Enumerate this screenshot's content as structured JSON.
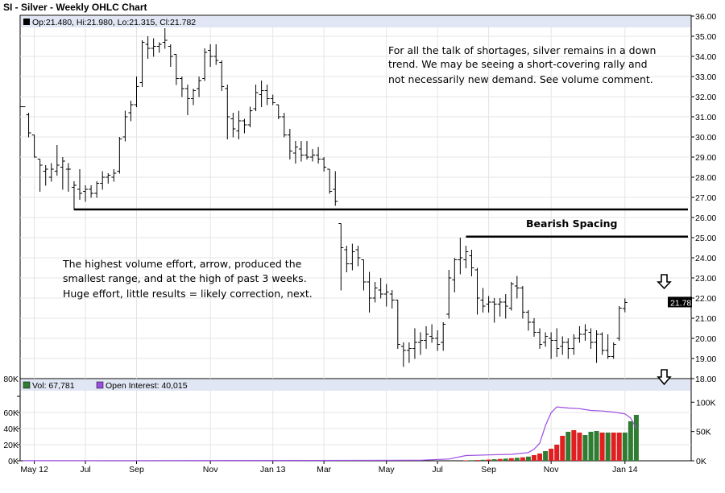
{
  "header": {
    "title": "SI - Silver - Weekly OHLC Chart",
    "ohlc_readout": "Op:21.480, Hi:21.980, Lo:21.315, Cl:21.782",
    "last_price_tag": "21.782"
  },
  "annotations": {
    "top_note": [
      "For all the talk of shortages, silver remains in a down",
      "trend.  We may be seeing a short-covering rally and",
      "not necessarily new demand.  See volume comment."
    ],
    "left_note": [
      "The highest volume effort, arrow, produced the",
      "smallest range, and at the high of past 3 weeks.",
      "Huge effort, little results = likely correction, next."
    ],
    "spacing_label": "Bearish Spacing"
  },
  "chart_data": [
    {
      "type": "ohlc",
      "title": "SI - Silver - Weekly OHLC Chart",
      "ylim": [
        18,
        36
      ],
      "y_ticks": [
        "18.00",
        "19.00",
        "20.00",
        "21.00",
        "22.00",
        "23.00",
        "24.00",
        "25.00",
        "26.00",
        "27.00",
        "28.00",
        "29.00",
        "30.00",
        "31.00",
        "32.00",
        "33.00",
        "34.00",
        "35.00",
        "36.00"
      ],
      "x_tick_labels": [
        "May 12",
        "Jul",
        "Sep",
        "Nov",
        "Jan 13",
        "Mar",
        "May",
        "Jul",
        "Sep",
        "Nov",
        "Jan 14"
      ],
      "bars": [
        {
          "o": 31.5,
          "h": 31.5,
          "l": 31.5,
          "c": 31.5
        },
        {
          "o": 31.1,
          "h": 31.2,
          "l": 30.0,
          "c": 30.2
        },
        {
          "o": 30.1,
          "h": 30.1,
          "l": 29.0,
          "c": 29.0
        },
        {
          "o": 28.9,
          "h": 28.9,
          "l": 27.3,
          "c": 28.6
        },
        {
          "o": 28.3,
          "h": 28.6,
          "l": 27.6,
          "c": 28.4
        },
        {
          "o": 28.0,
          "h": 28.7,
          "l": 27.8,
          "c": 28.4
        },
        {
          "o": 28.3,
          "h": 29.6,
          "l": 28.1,
          "c": 28.6
        },
        {
          "o": 28.5,
          "h": 29.0,
          "l": 27.4,
          "c": 28.8
        },
        {
          "o": 28.4,
          "h": 28.7,
          "l": 27.3,
          "c": 28.4
        },
        {
          "o": 27.5,
          "h": 27.8,
          "l": 26.4,
          "c": 27.6
        },
        {
          "o": 27.4,
          "h": 28.4,
          "l": 26.9,
          "c": 27.2
        },
        {
          "o": 27.3,
          "h": 27.6,
          "l": 26.8,
          "c": 27.4
        },
        {
          "o": 27.4,
          "h": 27.6,
          "l": 27.0,
          "c": 27.2
        },
        {
          "o": 27.2,
          "h": 27.8,
          "l": 27.0,
          "c": 27.7
        },
        {
          "o": 27.7,
          "h": 28.3,
          "l": 27.4,
          "c": 28.0
        },
        {
          "o": 28.0,
          "h": 28.2,
          "l": 27.7,
          "c": 28.1
        },
        {
          "o": 28.0,
          "h": 28.4,
          "l": 27.8,
          "c": 28.2
        },
        {
          "o": 28.3,
          "h": 30.0,
          "l": 28.2,
          "c": 29.9
        },
        {
          "o": 30.0,
          "h": 31.3,
          "l": 29.8,
          "c": 31.0
        },
        {
          "o": 31.2,
          "h": 31.8,
          "l": 30.8,
          "c": 31.6
        },
        {
          "o": 31.6,
          "h": 33.0,
          "l": 31.5,
          "c": 32.5
        },
        {
          "o": 32.7,
          "h": 34.8,
          "l": 32.5,
          "c": 34.7
        },
        {
          "o": 34.6,
          "h": 35.0,
          "l": 33.9,
          "c": 34.4
        },
        {
          "o": 34.4,
          "h": 34.9,
          "l": 34.0,
          "c": 34.5
        },
        {
          "o": 34.5,
          "h": 34.7,
          "l": 34.2,
          "c": 34.6
        },
        {
          "o": 34.7,
          "h": 35.4,
          "l": 34.4,
          "c": 34.8
        },
        {
          "o": 34.5,
          "h": 34.6,
          "l": 33.5,
          "c": 34.0
        },
        {
          "o": 34.1,
          "h": 34.1,
          "l": 32.6,
          "c": 32.9
        },
        {
          "o": 32.9,
          "h": 33.0,
          "l": 32.0,
          "c": 32.4
        },
        {
          "o": 32.4,
          "h": 32.6,
          "l": 31.1,
          "c": 31.9
        },
        {
          "o": 31.9,
          "h": 32.4,
          "l": 31.6,
          "c": 32.3
        },
        {
          "o": 32.4,
          "h": 33.0,
          "l": 32.0,
          "c": 32.8
        },
        {
          "o": 32.9,
          "h": 34.4,
          "l": 32.8,
          "c": 34.2
        },
        {
          "o": 34.3,
          "h": 34.6,
          "l": 33.5,
          "c": 34.0
        },
        {
          "o": 34.0,
          "h": 34.6,
          "l": 33.6,
          "c": 33.8
        },
        {
          "o": 33.7,
          "h": 33.8,
          "l": 32.3,
          "c": 32.5
        },
        {
          "o": 32.4,
          "h": 32.6,
          "l": 29.9,
          "c": 31.0
        },
        {
          "o": 30.9,
          "h": 31.2,
          "l": 30.0,
          "c": 30.4
        },
        {
          "o": 30.3,
          "h": 31.3,
          "l": 29.9,
          "c": 30.8
        },
        {
          "o": 30.8,
          "h": 30.9,
          "l": 30.2,
          "c": 30.6
        },
        {
          "o": 30.6,
          "h": 31.5,
          "l": 30.5,
          "c": 31.3
        },
        {
          "o": 31.4,
          "h": 32.6,
          "l": 31.3,
          "c": 32.2
        },
        {
          "o": 32.1,
          "h": 32.8,
          "l": 31.5,
          "c": 32.3
        },
        {
          "o": 32.3,
          "h": 32.6,
          "l": 31.6,
          "c": 31.9
        },
        {
          "o": 31.9,
          "h": 32.1,
          "l": 31.6,
          "c": 31.7
        },
        {
          "o": 31.6,
          "h": 31.6,
          "l": 30.9,
          "c": 31.0
        },
        {
          "o": 31.0,
          "h": 31.2,
          "l": 30.0,
          "c": 30.1
        },
        {
          "o": 30.1,
          "h": 30.4,
          "l": 28.9,
          "c": 29.3
        },
        {
          "o": 29.2,
          "h": 29.8,
          "l": 28.7,
          "c": 29.5
        },
        {
          "o": 29.4,
          "h": 29.8,
          "l": 28.8,
          "c": 29.1
        },
        {
          "o": 29.1,
          "h": 29.8,
          "l": 28.9,
          "c": 29.0
        },
        {
          "o": 29.0,
          "h": 29.4,
          "l": 28.8,
          "c": 29.1
        },
        {
          "o": 29.1,
          "h": 29.5,
          "l": 28.7,
          "c": 28.9
        },
        {
          "o": 28.9,
          "h": 29.0,
          "l": 28.3,
          "c": 28.5
        },
        {
          "o": 28.4,
          "h": 28.4,
          "l": 27.2,
          "c": 27.3
        },
        {
          "o": 27.4,
          "h": 28.3,
          "l": 26.6,
          "c": 26.8
        },
        {
          "o": 25.7,
          "h": 25.7,
          "l": 22.4,
          "c": 24.5
        },
        {
          "o": 24.4,
          "h": 24.6,
          "l": 23.3,
          "c": 23.7
        },
        {
          "o": 23.7,
          "h": 24.7,
          "l": 23.4,
          "c": 24.3
        },
        {
          "o": 24.4,
          "h": 24.6,
          "l": 23.6,
          "c": 24.0
        },
        {
          "o": 23.9,
          "h": 23.9,
          "l": 22.4,
          "c": 22.8
        },
        {
          "o": 22.8,
          "h": 23.3,
          "l": 21.3,
          "c": 22.0
        },
        {
          "o": 22.0,
          "h": 22.8,
          "l": 21.8,
          "c": 22.5
        },
        {
          "o": 22.4,
          "h": 23.0,
          "l": 22.0,
          "c": 22.2
        },
        {
          "o": 22.2,
          "h": 22.7,
          "l": 21.6,
          "c": 22.3
        },
        {
          "o": 22.2,
          "h": 22.4,
          "l": 21.5,
          "c": 21.9
        },
        {
          "o": 21.9,
          "h": 21.9,
          "l": 19.5,
          "c": 19.7
        },
        {
          "o": 19.6,
          "h": 19.8,
          "l": 18.6,
          "c": 19.4
        },
        {
          "o": 19.4,
          "h": 19.8,
          "l": 18.8,
          "c": 19.5
        },
        {
          "o": 19.5,
          "h": 20.5,
          "l": 19.0,
          "c": 19.8
        },
        {
          "o": 19.8,
          "h": 20.3,
          "l": 19.2,
          "c": 19.9
        },
        {
          "o": 19.9,
          "h": 20.6,
          "l": 19.5,
          "c": 20.2
        },
        {
          "o": 20.1,
          "h": 20.7,
          "l": 19.8,
          "c": 20.0
        },
        {
          "o": 20.0,
          "h": 20.4,
          "l": 19.4,
          "c": 19.7
        },
        {
          "o": 19.8,
          "h": 20.8,
          "l": 19.4,
          "c": 20.7
        },
        {
          "o": 21.2,
          "h": 23.4,
          "l": 21.0,
          "c": 23.0
        },
        {
          "o": 22.9,
          "h": 24.0,
          "l": 22.3,
          "c": 23.9
        },
        {
          "o": 23.9,
          "h": 25.0,
          "l": 23.2,
          "c": 24.0
        },
        {
          "o": 23.9,
          "h": 24.6,
          "l": 23.5,
          "c": 24.3
        },
        {
          "o": 24.1,
          "h": 24.4,
          "l": 23.1,
          "c": 23.5
        },
        {
          "o": 23.4,
          "h": 23.5,
          "l": 21.2,
          "c": 22.0
        },
        {
          "o": 21.9,
          "h": 22.5,
          "l": 21.3,
          "c": 21.6
        },
        {
          "o": 21.7,
          "h": 22.1,
          "l": 21.3,
          "c": 21.8
        },
        {
          "o": 21.8,
          "h": 22.0,
          "l": 20.8,
          "c": 21.7
        },
        {
          "o": 21.7,
          "h": 22.0,
          "l": 21.1,
          "c": 21.8
        },
        {
          "o": 21.8,
          "h": 22.2,
          "l": 21.0,
          "c": 21.6
        },
        {
          "o": 21.5,
          "h": 22.8,
          "l": 21.4,
          "c": 22.7
        },
        {
          "o": 22.6,
          "h": 23.1,
          "l": 22.0,
          "c": 22.5
        },
        {
          "o": 22.5,
          "h": 22.6,
          "l": 21.0,
          "c": 21.3
        },
        {
          "o": 21.3,
          "h": 21.4,
          "l": 20.4,
          "c": 20.8
        },
        {
          "o": 20.8,
          "h": 21.0,
          "l": 20.1,
          "c": 20.3
        },
        {
          "o": 20.3,
          "h": 20.5,
          "l": 19.5,
          "c": 19.7
        },
        {
          "o": 19.8,
          "h": 20.3,
          "l": 19.6,
          "c": 20.1
        },
        {
          "o": 20.0,
          "h": 20.3,
          "l": 19.0,
          "c": 19.9
        },
        {
          "o": 19.9,
          "h": 20.5,
          "l": 19.1,
          "c": 19.5
        },
        {
          "o": 19.6,
          "h": 20.1,
          "l": 19.2,
          "c": 19.8
        },
        {
          "o": 19.8,
          "h": 20.0,
          "l": 19.0,
          "c": 19.5
        },
        {
          "o": 19.5,
          "h": 20.2,
          "l": 19.2,
          "c": 20.0
        },
        {
          "o": 20.0,
          "h": 20.6,
          "l": 19.8,
          "c": 20.2
        },
        {
          "o": 20.2,
          "h": 20.7,
          "l": 19.9,
          "c": 20.4
        },
        {
          "o": 20.3,
          "h": 20.5,
          "l": 19.5,
          "c": 19.8
        },
        {
          "o": 19.8,
          "h": 20.4,
          "l": 18.8,
          "c": 20.2
        },
        {
          "o": 20.2,
          "h": 20.3,
          "l": 19.2,
          "c": 19.4
        },
        {
          "o": 19.4,
          "h": 20.2,
          "l": 19.0,
          "c": 19.1
        },
        {
          "o": 19.1,
          "h": 19.8,
          "l": 19.0,
          "c": 19.7
        },
        {
          "o": 20.0,
          "h": 21.6,
          "l": 19.9,
          "c": 21.5
        },
        {
          "o": 21.48,
          "h": 21.98,
          "l": 21.315,
          "c": 21.782
        }
      ],
      "horizontal_lines": [
        {
          "y": 26.4,
          "from_bar": 9,
          "to_bar": 115
        },
        {
          "y": 25.05,
          "from_bar": 78,
          "to_bar": 115
        }
      ]
    },
    {
      "type": "bar",
      "title": "Vol / Open Interest",
      "left_ylim": [
        0,
        80000
      ],
      "left_y_ticks": [
        "0K",
        "20K",
        "40K",
        "60K",
        "80K"
      ],
      "right_ylim": [
        0,
        110000
      ],
      "right_y_ticks": [
        "0K",
        "50K",
        "100K"
      ],
      "volume_label": "Vol: 67,781",
      "open_interest_label": "Open Interest: 40,015",
      "volume_bars": [
        {
          "bar": 78,
          "v": 500,
          "c": "r"
        },
        {
          "bar": 79,
          "v": 700,
          "c": "g"
        },
        {
          "bar": 80,
          "v": 900,
          "c": "r"
        },
        {
          "bar": 81,
          "v": 1200,
          "c": "g"
        },
        {
          "bar": 82,
          "v": 1500,
          "c": "r"
        },
        {
          "bar": 83,
          "v": 1900,
          "c": "g"
        },
        {
          "bar": 84,
          "v": 2300,
          "c": "r"
        },
        {
          "bar": 85,
          "v": 2700,
          "c": "g"
        },
        {
          "bar": 86,
          "v": 3200,
          "c": "r"
        },
        {
          "bar": 87,
          "v": 3700,
          "c": "g"
        },
        {
          "bar": 88,
          "v": 4300,
          "c": "r"
        },
        {
          "bar": 89,
          "v": 5200,
          "c": "g"
        },
        {
          "bar": 90,
          "v": 7000,
          "c": "r"
        },
        {
          "bar": 91,
          "v": 9000,
          "c": "r"
        },
        {
          "bar": 92,
          "v": 12000,
          "c": "g"
        },
        {
          "bar": 93,
          "v": 15000,
          "c": "r"
        },
        {
          "bar": 94,
          "v": 20000,
          "c": "r"
        },
        {
          "bar": 95,
          "v": 31000,
          "c": "r"
        },
        {
          "bar": 96,
          "v": 36000,
          "c": "g"
        },
        {
          "bar": 97,
          "v": 38000,
          "c": "r"
        },
        {
          "bar": 98,
          "v": 35000,
          "c": "r"
        },
        {
          "bar": 99,
          "v": 32000,
          "c": "g"
        },
        {
          "bar": 100,
          "v": 36000,
          "c": "g"
        },
        {
          "bar": 101,
          "v": 37000,
          "c": "g"
        },
        {
          "bar": 102,
          "v": 35000,
          "c": "r"
        },
        {
          "bar": 103,
          "v": 35000,
          "c": "g"
        },
        {
          "bar": 104,
          "v": 35000,
          "c": "r"
        },
        {
          "bar": 105,
          "v": 35000,
          "c": "r"
        },
        {
          "bar": 106,
          "v": 35000,
          "c": "g"
        },
        {
          "bar": 107,
          "v": 49000,
          "c": "g"
        },
        {
          "bar": 108,
          "v": 57000,
          "c": "g"
        }
      ],
      "open_interest_line": [
        {
          "bar": 0,
          "v": 100
        },
        {
          "bar": 20,
          "v": 300
        },
        {
          "bar": 50,
          "v": 600
        },
        {
          "bar": 70,
          "v": 1000
        },
        {
          "bar": 75,
          "v": 3000
        },
        {
          "bar": 78,
          "v": 9000
        },
        {
          "bar": 82,
          "v": 10000
        },
        {
          "bar": 86,
          "v": 11000
        },
        {
          "bar": 89,
          "v": 14000
        },
        {
          "bar": 90,
          "v": 20000
        },
        {
          "bar": 91,
          "v": 30000
        },
        {
          "bar": 92,
          "v": 60000
        },
        {
          "bar": 93,
          "v": 82000
        },
        {
          "bar": 94,
          "v": 92000
        },
        {
          "bar": 96,
          "v": 90000
        },
        {
          "bar": 98,
          "v": 89000
        },
        {
          "bar": 100,
          "v": 86000
        },
        {
          "bar": 102,
          "v": 85000
        },
        {
          "bar": 104,
          "v": 83000
        },
        {
          "bar": 106,
          "v": 80000
        },
        {
          "bar": 107,
          "v": 73000
        },
        {
          "bar": 108,
          "v": 55000
        }
      ]
    }
  ],
  "colors": {
    "up_volume": "#2e7d32",
    "down_volume": "#e02020",
    "open_interest": "#9b4de0",
    "frame": "#000000",
    "grid": "#e4e4e4"
  }
}
